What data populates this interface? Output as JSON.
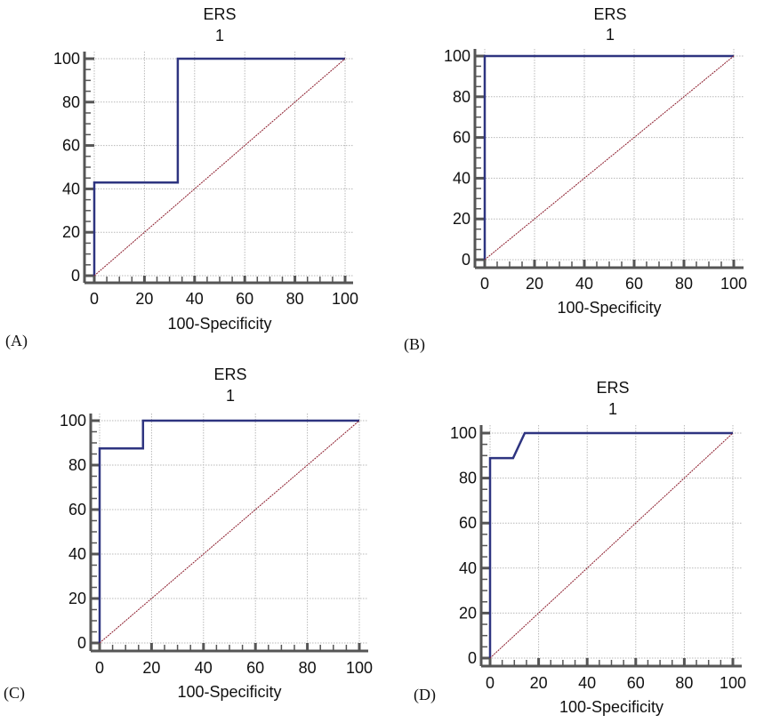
{
  "figure": {
    "panels_count": 4
  },
  "colors": {
    "roc_line": "#2e3480",
    "reference_line": "#8b1a2a"
  },
  "chart_data": [
    {
      "type": "line",
      "panel_label": "(A)",
      "title": "ERS",
      "subtitle": "1",
      "xlabel": "100-Specificity",
      "ylabel": "",
      "xlim": [
        0,
        100
      ],
      "ylim": [
        0,
        100
      ],
      "xticks": [
        "0",
        "20",
        "40",
        "60",
        "80",
        "100"
      ],
      "yticks": [
        "0",
        "20",
        "40",
        "60",
        "80",
        "100"
      ],
      "grid": true,
      "series": [
        {
          "name": "ROC",
          "x": [
            0,
            0,
            33.3,
            33.3,
            100
          ],
          "y": [
            0,
            42.9,
            42.9,
            100,
            100
          ]
        },
        {
          "name": "Reference",
          "x": [
            0,
            100
          ],
          "y": [
            0,
            100
          ]
        }
      ]
    },
    {
      "type": "line",
      "panel_label": "(B)",
      "title": "ERS",
      "subtitle": "1",
      "xlabel": "100-Specificity",
      "ylabel": "",
      "xlim": [
        0,
        100
      ],
      "ylim": [
        0,
        100
      ],
      "xticks": [
        "0",
        "20",
        "40",
        "60",
        "80",
        "100"
      ],
      "yticks": [
        "0",
        "20",
        "40",
        "60",
        "80",
        "100"
      ],
      "grid": true,
      "series": [
        {
          "name": "ROC",
          "x": [
            0,
            0,
            100
          ],
          "y": [
            0,
            100,
            100
          ]
        },
        {
          "name": "Reference",
          "x": [
            0,
            100
          ],
          "y": [
            0,
            100
          ]
        }
      ]
    },
    {
      "type": "line",
      "panel_label": "(C)",
      "title": "ERS",
      "subtitle": "1",
      "xlabel": "100-Specificity",
      "ylabel": "",
      "xlim": [
        0,
        100
      ],
      "ylim": [
        0,
        100
      ],
      "xticks": [
        "0",
        "20",
        "40",
        "60",
        "80",
        "100"
      ],
      "yticks": [
        "0",
        "20",
        "40",
        "60",
        "80",
        "100"
      ],
      "grid": true,
      "series": [
        {
          "name": "ROC",
          "x": [
            0,
            0,
            16.7,
            16.7,
            100
          ],
          "y": [
            0,
            87.5,
            87.5,
            100,
            100
          ]
        },
        {
          "name": "Reference",
          "x": [
            0,
            100
          ],
          "y": [
            0,
            100
          ]
        }
      ]
    },
    {
      "type": "line",
      "panel_label": "(D)",
      "title": "ERS",
      "subtitle": "1",
      "xlabel": "100-Specificity",
      "ylabel": "",
      "xlim": [
        0,
        100
      ],
      "ylim": [
        0,
        100
      ],
      "xticks": [
        "0",
        "20",
        "40",
        "60",
        "80",
        "100"
      ],
      "yticks": [
        "0",
        "20",
        "40",
        "60",
        "80",
        "100"
      ],
      "grid": true,
      "series": [
        {
          "name": "ROC",
          "x": [
            0,
            0,
            9.5,
            14.3,
            100
          ],
          "y": [
            0,
            88.9,
            88.9,
            100,
            100
          ]
        },
        {
          "name": "Reference",
          "x": [
            0,
            100
          ],
          "y": [
            0,
            100
          ]
        }
      ]
    }
  ]
}
